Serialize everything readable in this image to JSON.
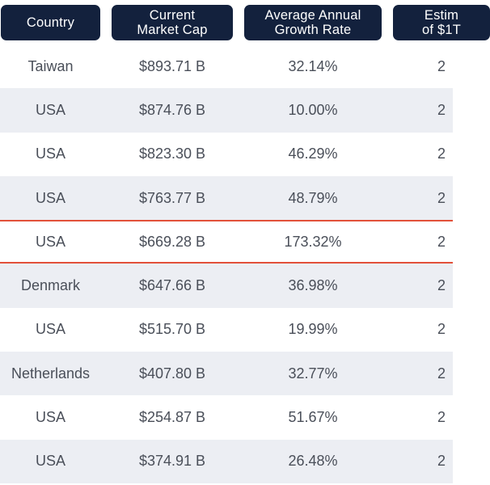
{
  "table": {
    "headers": {
      "country": "Country",
      "market_cap": "Current\nMarket Cap",
      "growth_rate": "Average Annual\nGrowth Rate",
      "estimate": "Estim\nof $1T"
    },
    "rows": [
      {
        "country": "Taiwan",
        "market_cap": "$893.71 B",
        "growth_rate": "32.14%",
        "estimate": "2"
      },
      {
        "country": "USA",
        "market_cap": "$874.76 B",
        "growth_rate": "10.00%",
        "estimate": "2"
      },
      {
        "country": "USA",
        "market_cap": "$823.30 B",
        "growth_rate": "46.29%",
        "estimate": "2"
      },
      {
        "country": "USA",
        "market_cap": "$763.77 B",
        "growth_rate": "48.79%",
        "estimate": "2"
      },
      {
        "country": "USA",
        "market_cap": "$669.28 B",
        "growth_rate": "173.32%",
        "estimate": "2"
      },
      {
        "country": "Denmark",
        "market_cap": "$647.66 B",
        "growth_rate": "36.98%",
        "estimate": "2"
      },
      {
        "country": "USA",
        "market_cap": "$515.70 B",
        "growth_rate": "19.99%",
        "estimate": "2"
      },
      {
        "country": "Netherlands",
        "market_cap": "$407.80 B",
        "growth_rate": "32.77%",
        "estimate": "2"
      },
      {
        "country": "USA",
        "market_cap": "$254.87 B",
        "growth_rate": "51.67%",
        "estimate": "2"
      },
      {
        "country": "USA",
        "market_cap": "$374.91 B",
        "growth_rate": "26.48%",
        "estimate": "2"
      }
    ],
    "highlighted_row_index": 4
  },
  "colors": {
    "header_background": "#13213d",
    "header_text": "#ffffff",
    "row_shade": "#eceef3",
    "row_text": "#4a4f59",
    "highlight_border": "#e2513a"
  }
}
